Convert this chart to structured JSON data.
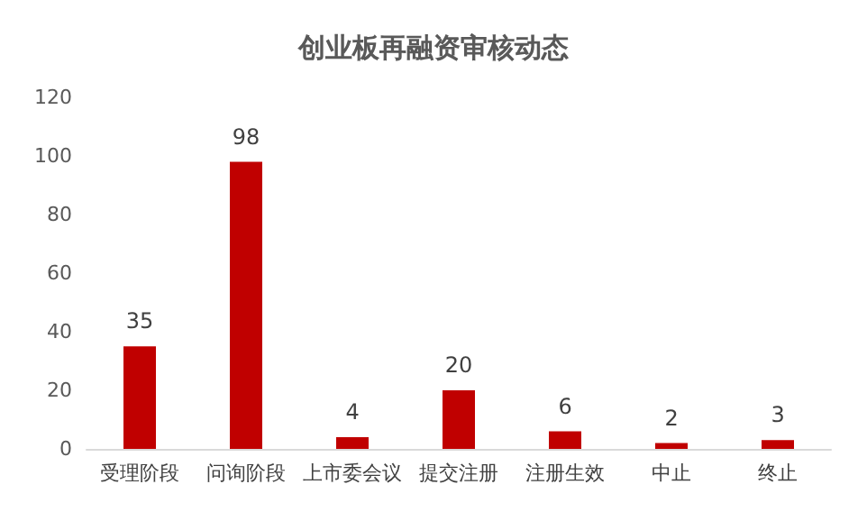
{
  "chart_data": {
    "type": "bar",
    "title": "创业板再融资审核动态",
    "categories": [
      "受理阶段",
      "问询阶段",
      "上市委会议",
      "提交注册",
      "注册生效",
      "中止",
      "终止"
    ],
    "values": [
      35,
      98,
      4,
      20,
      6,
      2,
      3
    ],
    "color": "#c00000",
    "ylim": [
      0,
      120
    ],
    "yticks": [
      0,
      20,
      40,
      60,
      80,
      100,
      120
    ],
    "grid": false,
    "data_labels": true
  }
}
